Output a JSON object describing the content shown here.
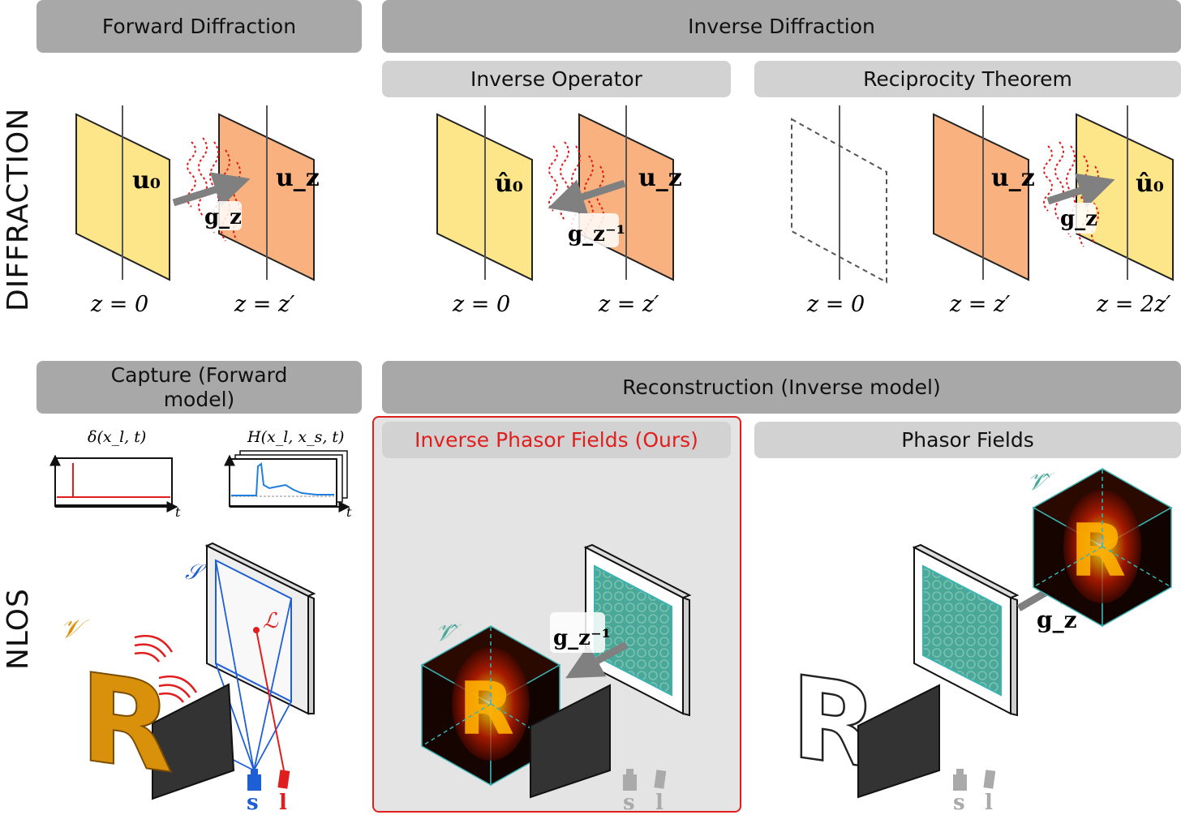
{
  "side_labels": {
    "top": "DIFFRACTION",
    "bottom": "NLOS"
  },
  "headers": {
    "forward": "Forward Diffraction",
    "inverse": "Inverse Diffraction",
    "inverse_operator": "Inverse Operator",
    "reciprocity": "Reciprocity Theorem",
    "capture": "Capture (Forward model)",
    "reconstruction": "Reconstruction (Inverse model)",
    "ipf": "Inverse Phasor Fields (Ours)",
    "pf": "Phasor Fields"
  },
  "labels": {
    "u0": "u₀",
    "uz": "u_z",
    "u0hat": "û₀",
    "gz": "g_z",
    "gz_inv": "g_z⁻¹",
    "z0": "z = 0",
    "zp": "z = z′",
    "z2p": "z = 2z′",
    "delta": "δ(x_l, t)",
    "H": "H(x_l, x_s, t)",
    "t": "t",
    "S": "𝒮",
    "L": "ℒ",
    "V": "𝒱",
    "Vhat": "𝒱̂",
    "s": "s",
    "l": "l",
    "R": "R"
  },
  "colors": {
    "yellow": "#fde68a",
    "orange": "#f9b27f",
    "red": "#e01e1e",
    "blue": "#1f5fd6",
    "gold": "#d9900a",
    "teal": "#49a99a",
    "panel": "#e4e4e4"
  }
}
